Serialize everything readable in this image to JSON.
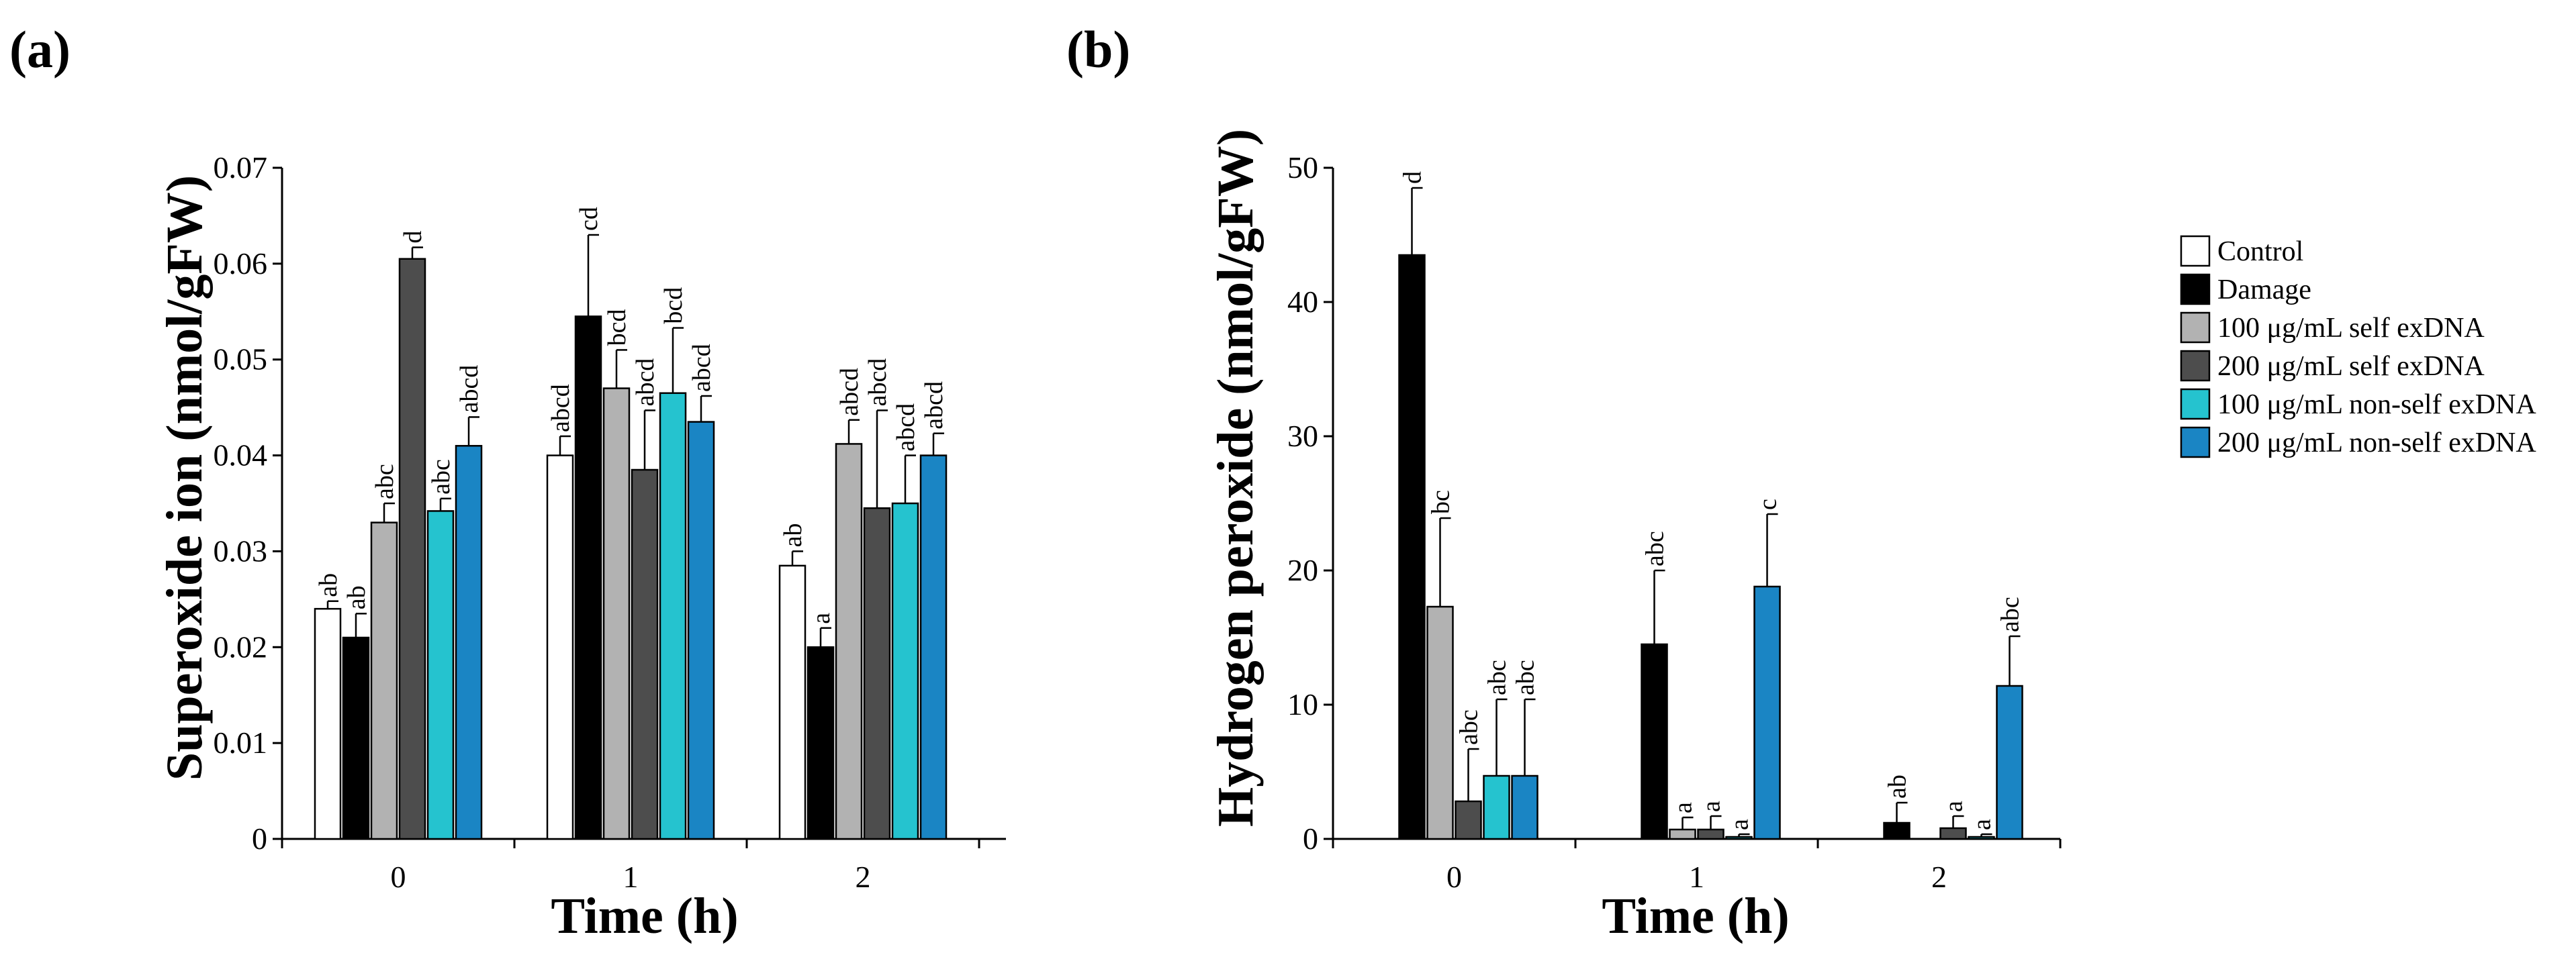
{
  "figure": {
    "panels": [
      "(a)",
      "(b)"
    ],
    "legend": [
      {
        "label": "Control",
        "color": "#ffffff"
      },
      {
        "label": "Damage",
        "color": "#000000"
      },
      {
        "label": "100 μg/mL self exDNA",
        "color": "#b2b2b2"
      },
      {
        "label": "200 μg/mL self exDNA",
        "color": "#4d4d4d"
      },
      {
        "label": "100 μg/mL non-self exDNA",
        "color": "#25c3cf"
      },
      {
        "label": "200 μg/mL non-self exDNA",
        "color": "#1a85c4"
      }
    ]
  },
  "chart_data": [
    {
      "type": "bar",
      "panel": "(a)",
      "title": "",
      "xlabel": "Time (h)",
      "ylabel": "Superoxide ion (nmol/gFW)",
      "categories": [
        "0",
        "1",
        "2"
      ],
      "ylim": [
        0,
        0.07
      ],
      "yticks": [
        "0",
        "0.01",
        "0.02",
        "0.03",
        "0.04",
        "0.05",
        "0.06",
        "0.07"
      ],
      "ytick_values": [
        0,
        0.01,
        0.02,
        0.03,
        0.04,
        0.05,
        0.06,
        0.07
      ],
      "series": [
        {
          "name": "Control",
          "values": [
            0.024,
            0.04,
            0.0285
          ],
          "errors": [
            0.0008,
            0.002,
            0.0015
          ],
          "letters": [
            "ab",
            "abcd",
            "ab"
          ]
        },
        {
          "name": "Damage",
          "values": [
            0.021,
            0.0545,
            0.02
          ],
          "errors": [
            0.0025,
            0.0085,
            0.002
          ],
          "letters": [
            "ab",
            "cd",
            "a"
          ]
        },
        {
          "name": "100 μg/mL self exDNA",
          "values": [
            0.033,
            0.047,
            0.0412
          ],
          "errors": [
            0.002,
            0.004,
            0.0025
          ],
          "letters": [
            "abc",
            "bcd",
            "abcd"
          ]
        },
        {
          "name": "200 μg/mL self exDNA",
          "values": [
            0.0605,
            0.0385,
            0.0345
          ],
          "errors": [
            0.0012,
            0.0062,
            0.0102
          ],
          "letters": [
            "d",
            "abcd",
            "abcd"
          ]
        },
        {
          "name": "100 μg/mL non-self exDNA",
          "values": [
            0.0342,
            0.0465,
            0.035
          ],
          "errors": [
            0.0013,
            0.0068,
            0.005
          ],
          "letters": [
            "abc",
            "bcd",
            "abcd"
          ]
        },
        {
          "name": "200 μg/mL non-self exDNA",
          "values": [
            0.041,
            0.0435,
            0.04
          ],
          "errors": [
            0.003,
            0.0027,
            0.0023
          ],
          "letters": [
            "abcd",
            "abcd",
            "abcd"
          ]
        }
      ]
    },
    {
      "type": "bar",
      "panel": "(b)",
      "title": "",
      "xlabel": "Time (h)",
      "ylabel": "Hydrogen peroxide (nmol/gFW)",
      "categories": [
        "0",
        "1",
        "2"
      ],
      "ylim": [
        0,
        50
      ],
      "yticks": [
        "0",
        "10",
        "20",
        "30",
        "40",
        "50"
      ],
      "ytick_values": [
        0,
        10,
        20,
        30,
        40,
        50
      ],
      "series": [
        {
          "name": "Control",
          "values": [
            null,
            null,
            null
          ],
          "errors": [
            null,
            null,
            null
          ],
          "letters": [
            "",
            "",
            ""
          ]
        },
        {
          "name": "Damage",
          "values": [
            43.5,
            14.5,
            1.2
          ],
          "errors": [
            5.0,
            5.5,
            1.5
          ],
          "letters": [
            "d",
            "abc",
            "ab"
          ]
        },
        {
          "name": "100 μg/mL self exDNA",
          "values": [
            17.3,
            0.7,
            0.0
          ],
          "errors": [
            6.6,
            0.9,
            0.0
          ],
          "letters": [
            "bc",
            "a",
            ""
          ]
        },
        {
          "name": "200 μg/mL self exDNA",
          "values": [
            2.8,
            0.7,
            0.8
          ],
          "errors": [
            3.9,
            1.0,
            0.9
          ],
          "letters": [
            "abc",
            "a",
            "a"
          ]
        },
        {
          "name": "100 μg/mL non-self exDNA",
          "values": [
            4.7,
            0.15,
            0.15
          ],
          "errors": [
            5.7,
            0.2,
            0.2
          ],
          "letters": [
            "abc",
            "a",
            "a"
          ]
        },
        {
          "name": "200 μg/mL non-self exDNA",
          "values": [
            4.7,
            18.8,
            11.4
          ],
          "errors": [
            5.7,
            5.4,
            3.7
          ],
          "letters": [
            "abc",
            "c",
            "abc"
          ]
        }
      ]
    }
  ]
}
